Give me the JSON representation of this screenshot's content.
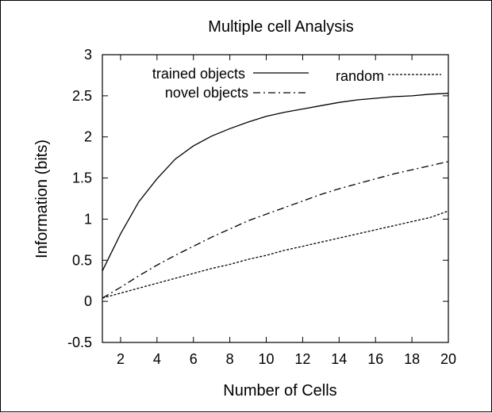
{
  "chart_data": {
    "type": "line",
    "title": "Multiple cell Analysis",
    "xlabel": "Number of Cells",
    "ylabel": "Information (bits)",
    "xlim": [
      1,
      20
    ],
    "ylim": [
      -0.5,
      3
    ],
    "xticks": [
      2,
      4,
      6,
      8,
      10,
      12,
      14,
      16,
      18,
      20
    ],
    "yticks": [
      -0.5,
      0,
      0.5,
      1,
      1.5,
      2,
      2.5,
      3
    ],
    "ytick_labels": [
      "-0.5",
      "0",
      "0.5",
      "1",
      "1.5",
      "2",
      "2.5",
      "3"
    ],
    "grid": false,
    "legend_position": "top",
    "x": [
      1,
      2,
      3,
      4,
      5,
      6,
      7,
      8,
      9,
      10,
      11,
      12,
      13,
      14,
      15,
      16,
      17,
      18,
      19,
      20
    ],
    "series": [
      {
        "name": "trained objects",
        "style": "solid",
        "values": [
          0.37,
          0.82,
          1.21,
          1.49,
          1.73,
          1.89,
          2.01,
          2.1,
          2.18,
          2.25,
          2.3,
          2.34,
          2.38,
          2.42,
          2.45,
          2.47,
          2.49,
          2.5,
          2.52,
          2.53
        ]
      },
      {
        "name": "novel objects",
        "style": "dashdot",
        "values": [
          0.04,
          0.17,
          0.31,
          0.44,
          0.56,
          0.67,
          0.78,
          0.88,
          0.98,
          1.06,
          1.14,
          1.22,
          1.3,
          1.37,
          1.43,
          1.49,
          1.55,
          1.6,
          1.65,
          1.7
        ]
      },
      {
        "name": "random",
        "style": "dotted",
        "values": [
          0.04,
          0.1,
          0.16,
          0.22,
          0.28,
          0.34,
          0.4,
          0.45,
          0.51,
          0.56,
          0.62,
          0.67,
          0.72,
          0.77,
          0.82,
          0.87,
          0.92,
          0.97,
          1.02,
          1.1
        ]
      }
    ]
  }
}
